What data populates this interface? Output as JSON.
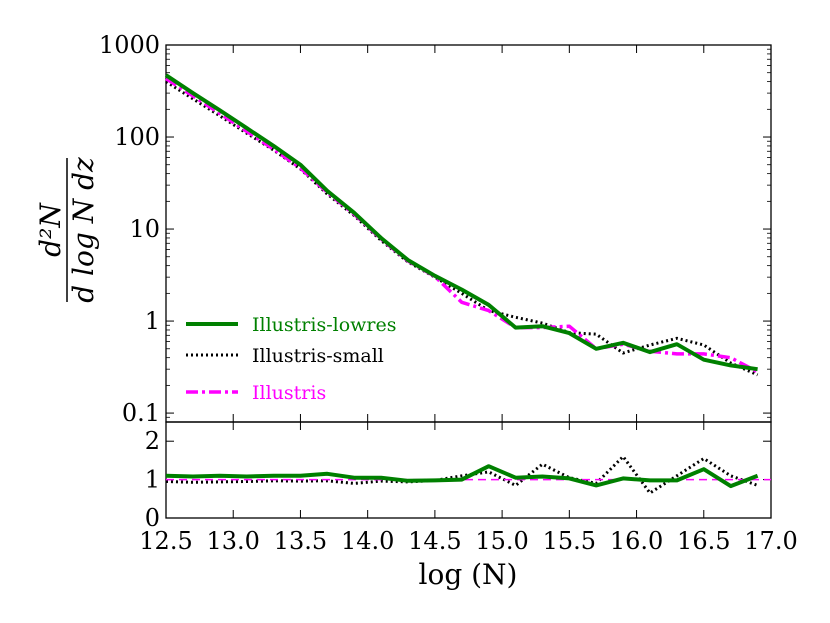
{
  "chart_data": [
    {
      "id": "main",
      "type": "line",
      "yscale": "log",
      "xlim": [
        12.5,
        17.0
      ],
      "ylim": [
        0.08,
        1000
      ],
      "xticks": [
        12.5,
        13.0,
        13.5,
        14.0,
        14.5,
        15.0,
        15.5,
        16.0,
        16.5,
        17.0
      ],
      "yticks": [
        0.1,
        1,
        10,
        100,
        1000
      ],
      "ytick_labels": [
        "0.1",
        "1",
        "10",
        "100",
        "1000"
      ],
      "ylabel_numerator": "d²N",
      "ylabel_denominator": "d log N dz",
      "legend": [
        "Illustris-lowres",
        "Illustris-small",
        "Illustris"
      ],
      "legend_position": "lower-left",
      "series": [
        {
          "name": "Illustris-lowres",
          "color": "#008000",
          "style": "solid",
          "x": [
            12.5,
            12.7,
            12.9,
            13.1,
            13.3,
            13.5,
            13.7,
            13.9,
            14.1,
            14.3,
            14.5,
            14.7,
            14.9,
            15.1,
            15.3,
            15.5,
            15.7,
            15.9,
            16.1,
            16.3,
            16.5,
            16.7,
            16.9
          ],
          "values": [
            470,
            300,
            195,
            125,
            80,
            50,
            26,
            15,
            8,
            4.6,
            3.1,
            2.2,
            1.5,
            0.85,
            0.88,
            0.74,
            0.5,
            0.58,
            0.46,
            0.56,
            0.38,
            0.33,
            0.3
          ]
        },
        {
          "name": "Illustris-small",
          "color": "#000000",
          "style": "dotted",
          "x": [
            12.5,
            12.7,
            12.9,
            13.1,
            13.3,
            13.5,
            13.7,
            13.9,
            14.1,
            14.3,
            14.5,
            14.7,
            14.9,
            15.1,
            15.3,
            15.5,
            15.7,
            15.9,
            16.1,
            16.3,
            16.5,
            16.7,
            16.9
          ],
          "values": [
            400,
            260,
            170,
            110,
            72,
            45,
            24,
            14,
            7.5,
            4.4,
            3.0,
            2.0,
            1.3,
            1.1,
            0.95,
            0.75,
            0.72,
            0.45,
            0.55,
            0.65,
            0.55,
            0.35,
            0.26
          ]
        },
        {
          "name": "Illustris",
          "color": "#ff00ff",
          "style": "dashdot",
          "x": [
            12.5,
            12.7,
            12.9,
            13.1,
            13.3,
            13.5,
            13.7,
            13.9,
            14.1,
            14.3,
            14.5,
            14.7,
            14.9,
            15.1,
            15.3,
            15.5,
            15.7,
            15.9,
            16.1,
            16.3,
            16.5,
            16.7,
            16.9
          ],
          "values": [
            430,
            280,
            180,
            115,
            74,
            46,
            25,
            14.5,
            7.8,
            4.5,
            3.05,
            1.6,
            1.3,
            0.85,
            0.85,
            0.88,
            0.5,
            0.56,
            0.47,
            0.44,
            0.44,
            0.4,
            0.28
          ]
        }
      ]
    },
    {
      "id": "ratio",
      "type": "line",
      "xlim": [
        12.5,
        17.0
      ],
      "ylim": [
        0,
        2.5
      ],
      "xticks": [
        12.5,
        13.0,
        13.5,
        14.0,
        14.5,
        15.0,
        15.5,
        16.0,
        16.5,
        17.0
      ],
      "xtick_labels": [
        "12.5",
        "13.0",
        "13.5",
        "14.0",
        "14.5",
        "15.0",
        "15.5",
        "16.0",
        "16.5",
        "17.0"
      ],
      "yticks": [
        0,
        1,
        2
      ],
      "ytick_labels": [
        "0",
        "1",
        "2"
      ],
      "xlabel": "log (N)",
      "series": [
        {
          "name": "Illustris-lowres",
          "color": "#008000",
          "style": "solid",
          "x": [
            12.5,
            12.7,
            12.9,
            13.1,
            13.3,
            13.5,
            13.7,
            13.9,
            14.1,
            14.3,
            14.5,
            14.7,
            14.9,
            15.1,
            15.3,
            15.5,
            15.7,
            15.9,
            16.1,
            16.3,
            16.5,
            16.7,
            16.9
          ],
          "values": [
            1.1,
            1.08,
            1.1,
            1.08,
            1.1,
            1.1,
            1.15,
            1.05,
            1.05,
            0.97,
            0.98,
            1.0,
            1.35,
            1.05,
            1.08,
            1.03,
            0.85,
            1.03,
            0.98,
            0.98,
            1.27,
            0.83,
            1.1
          ]
        },
        {
          "name": "Illustris-small",
          "color": "#000000",
          "style": "dotted",
          "x": [
            12.5,
            12.7,
            12.9,
            13.1,
            13.3,
            13.5,
            13.7,
            13.9,
            14.1,
            14.3,
            14.5,
            14.7,
            14.9,
            15.1,
            15.3,
            15.5,
            15.7,
            15.9,
            16.1,
            16.3,
            16.5,
            16.7,
            16.9
          ],
          "values": [
            0.95,
            0.93,
            0.94,
            0.95,
            0.97,
            0.96,
            0.97,
            0.9,
            0.96,
            0.94,
            0.98,
            1.1,
            1.2,
            0.85,
            1.4,
            1.05,
            0.9,
            1.6,
            0.65,
            1.1,
            1.55,
            1.1,
            0.85
          ]
        },
        {
          "name": "Illustris",
          "color": "#ff00ff",
          "style": "dashed",
          "x": [
            12.5,
            17.0
          ],
          "values": [
            1.0,
            1.0
          ]
        }
      ]
    }
  ]
}
